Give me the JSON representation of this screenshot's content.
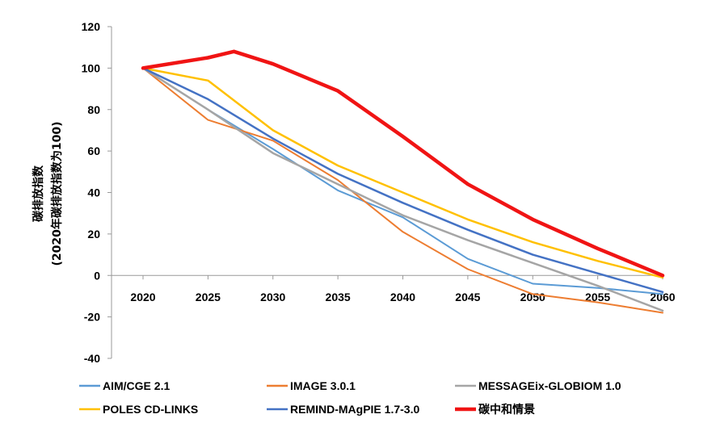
{
  "chart_data": {
    "type": "line",
    "title": "",
    "xlabel": "",
    "ylabel_line1": "碳排放指数",
    "ylabel_line2": "(2020年碳排放指数为100)",
    "ylim": [
      -40,
      120
    ],
    "yticks": [
      -40,
      -20,
      0,
      20,
      40,
      60,
      80,
      100,
      120
    ],
    "xlim": [
      2020,
      2060
    ],
    "xticks": [
      2020,
      2025,
      2030,
      2035,
      2040,
      2045,
      2050,
      2055,
      2060
    ],
    "grid": false,
    "legend_position": "bottom",
    "series": [
      {
        "name": "AIM/CGE 2.1",
        "color": "#5B9BD5",
        "width": 2,
        "points": [
          [
            2020,
            100
          ],
          [
            2025,
            80
          ],
          [
            2030,
            61
          ],
          [
            2035,
            41
          ],
          [
            2040,
            28
          ],
          [
            2045,
            8
          ],
          [
            2050,
            -4
          ],
          [
            2055,
            -6
          ],
          [
            2060,
            -9
          ]
        ]
      },
      {
        "name": "IMAGE 3.0.1",
        "color": "#ED7D31",
        "width": 2,
        "points": [
          [
            2020,
            100
          ],
          [
            2025,
            75
          ],
          [
            2030,
            65
          ],
          [
            2035,
            46
          ],
          [
            2040,
            21
          ],
          [
            2045,
            3
          ],
          [
            2050,
            -9
          ],
          [
            2055,
            -13
          ],
          [
            2060,
            -18
          ]
        ]
      },
      {
        "name": "MESSAGEix-GLOBIOM 1.0",
        "color": "#A5A5A5",
        "width": 2.5,
        "points": [
          [
            2020,
            100
          ],
          [
            2025,
            80
          ],
          [
            2030,
            59
          ],
          [
            2035,
            44
          ],
          [
            2040,
            29
          ],
          [
            2045,
            17
          ],
          [
            2050,
            6
          ],
          [
            2055,
            -5
          ],
          [
            2060,
            -17
          ]
        ]
      },
      {
        "name": "POLES CD-LINKS",
        "color": "#FFC000",
        "width": 2.5,
        "points": [
          [
            2020,
            100
          ],
          [
            2025,
            94
          ],
          [
            2030,
            70
          ],
          [
            2035,
            53
          ],
          [
            2040,
            40
          ],
          [
            2045,
            27
          ],
          [
            2050,
            16
          ],
          [
            2055,
            7
          ],
          [
            2060,
            -1
          ]
        ]
      },
      {
        "name": "REMIND-MAgPIE 1.7-3.0",
        "color": "#4472C4",
        "width": 2.5,
        "points": [
          [
            2020,
            100
          ],
          [
            2025,
            85
          ],
          [
            2030,
            66
          ],
          [
            2035,
            49
          ],
          [
            2040,
            35
          ],
          [
            2045,
            22
          ],
          [
            2050,
            10
          ],
          [
            2055,
            1
          ],
          [
            2060,
            -8
          ]
        ]
      },
      {
        "name": "碳中和情景",
        "color": "#F01414",
        "width": 4.5,
        "points": [
          [
            2020,
            100
          ],
          [
            2025,
            105
          ],
          [
            2027,
            108
          ],
          [
            2030,
            102
          ],
          [
            2035,
            89
          ],
          [
            2040,
            67
          ],
          [
            2045,
            44
          ],
          [
            2050,
            27
          ],
          [
            2055,
            13
          ],
          [
            2060,
            0
          ]
        ]
      }
    ]
  }
}
